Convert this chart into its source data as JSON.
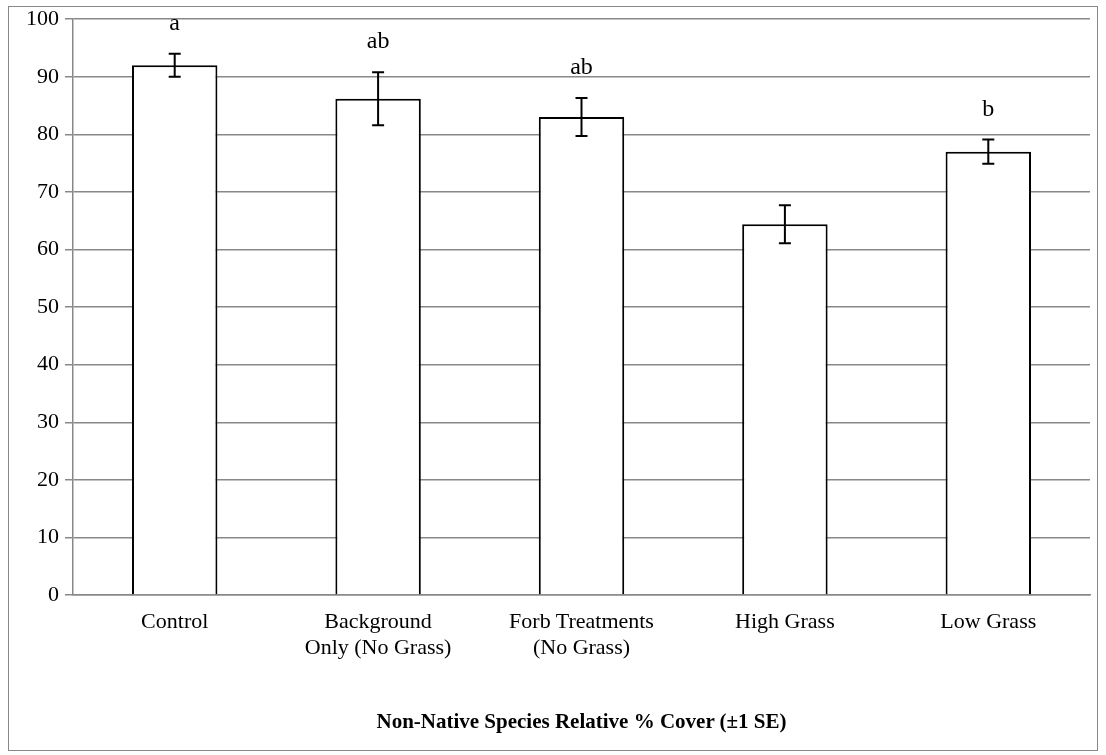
{
  "chart_data": {
    "type": "bar",
    "xlabel": "Non-Native Species Relative % Cover (±1 SE)",
    "categories": [
      "Control",
      "Background Only (No Grass)",
      "Forb Treatments (No Grass)",
      "High Grass",
      "Low Grass"
    ],
    "values": [
      92,
      86.2,
      83,
      64.4,
      77
    ],
    "errors": [
      2,
      4.6,
      3.3,
      3.3,
      2.1
    ],
    "color": "#ffffff",
    "ylim": [
      0,
      100
    ],
    "yticks": [
      0,
      10,
      20,
      30,
      40,
      50,
      60,
      70,
      80,
      90,
      100
    ],
    "grid": "y",
    "legend": false,
    "annotations": [
      {
        "text": "a",
        "x": "Control",
        "y": 94
      },
      {
        "text": "ab",
        "x": "Background Only (No Grass)",
        "y": 90.8
      },
      {
        "text": "ab",
        "x": "Forb Treatments (No Grass)",
        "y": 86.3
      },
      {
        "text": "b",
        "x": "Low Grass",
        "y": 79.1
      }
    ]
  }
}
